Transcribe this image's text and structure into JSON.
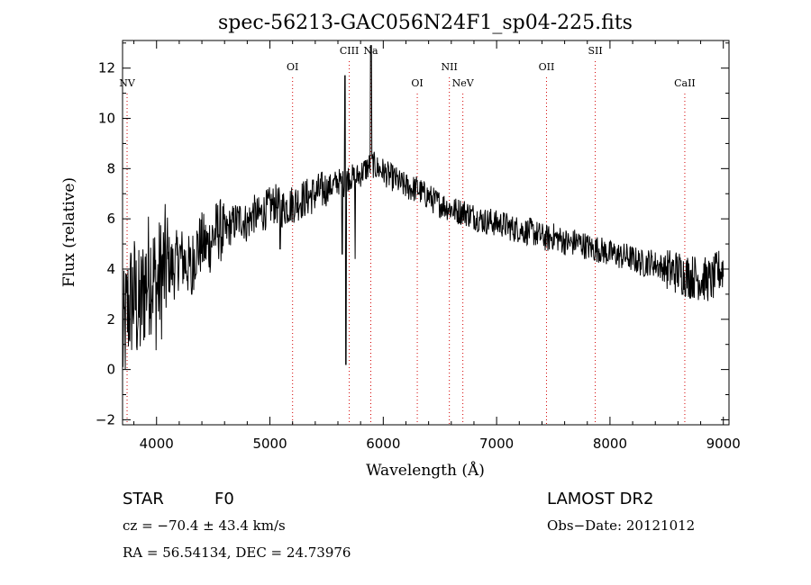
{
  "chart_data": {
    "type": "line",
    "title": "spec-56213-GAC056N24F1_sp04-225.fits",
    "xlabel": "Wavelength (Å)",
    "ylabel": "Flux (relative)",
    "xlim": [
      3700,
      9050
    ],
    "ylim": [
      -2.2,
      13.1
    ],
    "xticks": [
      4000,
      5000,
      6000,
      7000,
      8000,
      9000
    ],
    "yticks": [
      -2,
      0,
      2,
      4,
      6,
      8,
      10,
      12
    ],
    "grid": false,
    "series": [
      {
        "x": [
          3700,
          3750,
          3800,
          3850,
          3900,
          3950,
          4000,
          4050,
          4100,
          4150,
          4200,
          4250,
          4300,
          4350,
          4400,
          4450,
          4500,
          4550,
          4600,
          4650,
          4700,
          4750,
          4800,
          4850,
          4900,
          4950,
          5000,
          5050,
          5100,
          5150,
          5200,
          5250,
          5300,
          5350,
          5400,
          5450,
          5500,
          5550,
          5600,
          5650,
          5700,
          5750,
          5800,
          5850,
          5900,
          5950,
          6000,
          6050,
          6100,
          6150,
          6200,
          6250,
          6300,
          6350,
          6400,
          6450,
          6500,
          6550,
          6600,
          6650,
          6700,
          6750,
          6800,
          6850,
          6900,
          6950,
          7000,
          7050,
          7100,
          7150,
          7200,
          7250,
          7300,
          7350,
          7400,
          7450,
          7500,
          7550,
          7600,
          7650,
          7700,
          7750,
          7800,
          7850,
          7900,
          7950,
          8000,
          8050,
          8100,
          8150,
          8200,
          8250,
          8300,
          8350,
          8400,
          8450,
          8500,
          8550,
          8600,
          8650,
          8700,
          8750,
          8800,
          8850,
          8900,
          8950,
          9000
        ],
        "y": [
          1.0,
          2.5,
          3.0,
          2.2,
          3.5,
          4.0,
          3.2,
          3.8,
          4.2,
          4.0,
          4.5,
          4.3,
          4.0,
          4.8,
          5.0,
          4.9,
          5.3,
          5.6,
          5.4,
          5.7,
          5.9,
          6.0,
          5.8,
          6.2,
          6.1,
          6.3,
          6.5,
          6.6,
          6.4,
          6.5,
          6.6,
          6.7,
          6.8,
          6.9,
          7.0,
          7.1,
          7.2,
          7.3,
          7.5,
          7.4,
          7.7,
          7.6,
          7.8,
          8.0,
          8.2,
          8.0,
          7.9,
          7.7,
          7.6,
          7.4,
          7.3,
          7.2,
          7.2,
          7.0,
          6.9,
          6.7,
          6.6,
          6.5,
          6.4,
          6.3,
          6.3,
          6.2,
          6.1,
          6.0,
          5.9,
          5.9,
          5.8,
          5.8,
          5.7,
          5.6,
          5.6,
          5.5,
          5.5,
          5.4,
          5.3,
          5.2,
          5.3,
          5.2,
          5.1,
          5.0,
          5.1,
          5.0,
          4.9,
          4.8,
          4.8,
          4.7,
          4.6,
          4.6,
          4.5,
          4.5,
          4.4,
          4.3,
          4.2,
          4.3,
          4.2,
          4.1,
          4.0,
          3.9,
          3.9,
          3.8,
          3.7,
          3.7,
          3.6,
          3.6,
          3.5,
          3.9,
          4.0
        ]
      }
    ],
    "lines": [
      {
        "label": "NV",
        "x": 3740,
        "row": 2
      },
      {
        "label": "OI",
        "x": 5200,
        "row": 1
      },
      {
        "label": "CIII",
        "x": 5700,
        "row": 0
      },
      {
        "label": "Na",
        "x": 5890,
        "row": 0
      },
      {
        "label": "OI",
        "x": 6300,
        "row": 2
      },
      {
        "label": "NII",
        "x": 6583,
        "row": 1
      },
      {
        "label": "NeV",
        "x": 6702,
        "row": 2
      },
      {
        "label": "OII",
        "x": 7440,
        "row": 1
      },
      {
        "label": "SII",
        "x": 7870,
        "row": 0
      },
      {
        "label": "CaII",
        "x": 8660,
        "row": 2
      }
    ]
  },
  "info": {
    "object": "STAR",
    "subclass": "F0",
    "survey": "LAMOST DR2",
    "cz": "cz = −70.4 ± 43.4 km/s",
    "obs_date": "Obs−Date: 20121012",
    "coords": "RA =  56.54134, DEC =  24.73976"
  }
}
